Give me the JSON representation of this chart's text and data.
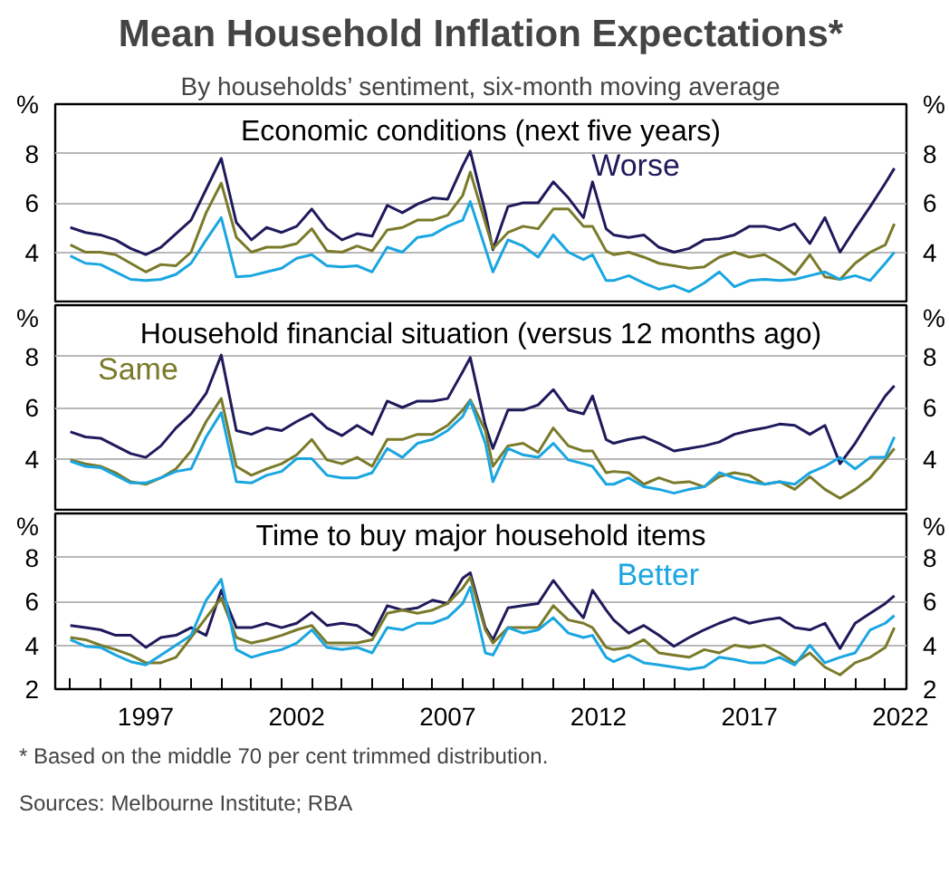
{
  "chart_data": [
    {
      "type": "line",
      "title": "Economic conditions (next five years)",
      "annotations": [
        "Mean Household Inflation Expectations*",
        "By households’ sentiment, six-month moving average"
      ],
      "x": [
        1995,
        1995.5,
        1996,
        1996.5,
        1997,
        1997.5,
        1998,
        1998.5,
        1999,
        1999.5,
        2000,
        2000.5,
        2001,
        2001.5,
        2002,
        2002.5,
        2003,
        2003.5,
        2004,
        2004.5,
        2005,
        2005.5,
        2006,
        2006.5,
        2007,
        2007.5,
        2008,
        2008.25,
        2008.75,
        2009,
        2009.5,
        2010,
        2010.5,
        2011,
        2011.5,
        2012,
        2012.3,
        2012.75,
        2013,
        2013.5,
        2014,
        2014.5,
        2015,
        2015.5,
        2016,
        2016.5,
        2017,
        2017.5,
        2018,
        2018.5,
        2019,
        2019.5,
        2020,
        2020.5,
        2021,
        2021.5,
        2022,
        2022.3
      ],
      "series": [
        {
          "name": "Worse",
          "color": "#1f1a5c",
          "values": [
            5.0,
            4.8,
            4.7,
            4.5,
            4.15,
            3.9,
            4.2,
            4.75,
            5.3,
            6.55,
            7.8,
            5.2,
            4.5,
            5.0,
            4.8,
            5.05,
            5.75,
            4.95,
            4.5,
            4.75,
            4.65,
            5.9,
            5.6,
            5.95,
            6.2,
            6.15,
            7.5,
            8.1,
            5.6,
            4.1,
            5.85,
            6.0,
            6.0,
            6.85,
            6.2,
            5.4,
            6.85,
            4.95,
            4.7,
            4.6,
            4.7,
            4.2,
            4.0,
            4.15,
            4.5,
            4.55,
            4.7,
            5.05,
            5.05,
            4.9,
            5.15,
            4.35,
            5.4,
            4.0,
            4.95,
            5.85,
            6.8,
            7.4
          ]
        },
        {
          "color": "#7a7a2a",
          "values": [
            4.3,
            4.0,
            4.0,
            3.9,
            3.55,
            3.2,
            3.5,
            3.45,
            4.0,
            5.6,
            6.8,
            4.6,
            4.0,
            4.2,
            4.2,
            4.35,
            4.95,
            4.05,
            4.0,
            4.25,
            4.05,
            4.9,
            5.0,
            5.3,
            5.3,
            5.5,
            6.3,
            7.25,
            5.2,
            4.15,
            4.8,
            5.05,
            4.95,
            5.75,
            5.75,
            5.05,
            5.05,
            4.05,
            3.9,
            4.0,
            3.8,
            3.55,
            3.45,
            3.35,
            3.4,
            3.8,
            4.0,
            3.8,
            3.9,
            3.55,
            3.1,
            3.9,
            3.0,
            2.9,
            3.55,
            4.0,
            4.3,
            5.15
          ]
        },
        {
          "color": "#1aa6e0",
          "values": [
            3.85,
            3.55,
            3.5,
            3.2,
            2.9,
            2.85,
            2.9,
            3.1,
            3.55,
            4.5,
            5.4,
            3.0,
            3.05,
            3.2,
            3.35,
            3.75,
            3.9,
            3.45,
            3.4,
            3.45,
            3.2,
            4.2,
            4.0,
            4.6,
            4.7,
            5.05,
            5.3,
            6.05,
            4.15,
            3.2,
            4.5,
            4.25,
            3.8,
            4.7,
            4.0,
            3.7,
            3.9,
            2.85,
            2.85,
            3.05,
            2.75,
            2.5,
            2.65,
            2.4,
            2.75,
            3.2,
            2.6,
            2.85,
            2.9,
            2.85,
            2.9,
            3.05,
            3.2,
            2.9,
            3.05,
            2.85,
            3.55,
            4.0
          ]
        }
      ],
      "xlim": [
        1994.5,
        2022.7
      ],
      "ylim": [
        2,
        10
      ],
      "yticks": [
        4,
        6,
        8
      ],
      "y2lim": [
        2,
        10
      ],
      "y2ticks": [
        4,
        6,
        8
      ],
      "ylabel": "%",
      "y2label": "%",
      "grid": "y",
      "tick_labels": "y"
    },
    {
      "type": "line",
      "title": "Household financial situation (versus 12 months ago)",
      "x": [
        1995,
        1995.5,
        1996,
        1996.5,
        1997,
        1997.5,
        1998,
        1998.5,
        1999,
        1999.5,
        2000,
        2000.5,
        2001,
        2001.5,
        2002,
        2002.5,
        2003,
        2003.5,
        2004,
        2004.5,
        2005,
        2005.5,
        2006,
        2006.5,
        2007,
        2007.5,
        2008,
        2008.25,
        2008.75,
        2009,
        2009.5,
        2010,
        2010.5,
        2011,
        2011.5,
        2012,
        2012.3,
        2012.75,
        2013,
        2013.5,
        2014,
        2014.5,
        2015,
        2015.5,
        2016,
        2016.5,
        2017,
        2017.5,
        2018,
        2018.5,
        2019,
        2019.5,
        2020,
        2020.5,
        2021,
        2021.5,
        2022,
        2022.3
      ],
      "series": [
        {
          "color": "#1f1a5c",
          "values": [
            5.05,
            4.85,
            4.8,
            4.5,
            4.2,
            4.05,
            4.5,
            5.2,
            5.75,
            6.55,
            8.05,
            5.1,
            4.95,
            5.2,
            5.1,
            5.45,
            5.75,
            5.2,
            4.9,
            5.3,
            4.95,
            6.25,
            6.0,
            6.25,
            6.25,
            6.35,
            7.4,
            7.95,
            5.3,
            4.4,
            5.9,
            5.9,
            6.1,
            6.7,
            5.9,
            5.75,
            6.45,
            4.75,
            4.6,
            4.75,
            4.85,
            4.6,
            4.3,
            4.4,
            4.5,
            4.65,
            4.95,
            5.1,
            5.2,
            5.35,
            5.3,
            4.95,
            5.3,
            3.8,
            4.6,
            5.55,
            6.45,
            6.85
          ]
        },
        {
          "name": "Same",
          "color": "#7a7a2a",
          "values": [
            3.95,
            3.8,
            3.7,
            3.45,
            3.1,
            3.0,
            3.25,
            3.6,
            4.3,
            5.45,
            6.35,
            3.7,
            3.35,
            3.6,
            3.8,
            4.15,
            4.75,
            3.95,
            3.8,
            4.05,
            3.7,
            4.75,
            4.75,
            4.95,
            4.95,
            5.3,
            5.9,
            6.3,
            5.1,
            3.7,
            4.5,
            4.6,
            4.25,
            5.2,
            4.5,
            4.3,
            4.3,
            3.45,
            3.5,
            3.45,
            3.0,
            3.25,
            3.05,
            3.1,
            2.9,
            3.3,
            3.45,
            3.35,
            3.0,
            3.1,
            2.8,
            3.3,
            2.8,
            2.45,
            2.8,
            3.25,
            3.95,
            4.4
          ]
        },
        {
          "color": "#1aa6e0",
          "values": [
            3.9,
            3.7,
            3.65,
            3.35,
            3.05,
            3.05,
            3.25,
            3.5,
            3.6,
            4.85,
            5.8,
            3.1,
            3.05,
            3.35,
            3.5,
            4.0,
            4.0,
            3.35,
            3.25,
            3.25,
            3.45,
            4.4,
            4.05,
            4.6,
            4.75,
            5.1,
            5.65,
            6.25,
            4.6,
            3.1,
            4.4,
            4.15,
            4.05,
            4.6,
            3.95,
            3.8,
            3.7,
            3.0,
            3.0,
            3.25,
            2.9,
            2.8,
            2.65,
            2.8,
            2.9,
            3.45,
            3.25,
            3.1,
            3.0,
            3.1,
            3.0,
            3.45,
            3.7,
            4.05,
            3.6,
            4.05,
            4.05,
            4.85
          ]
        }
      ],
      "xlim": [
        1994.5,
        2022.7
      ],
      "ylim": [
        2,
        10
      ],
      "yticks": [
        4,
        6,
        8
      ],
      "y2lim": [
        2,
        10
      ],
      "y2ticks": [
        4,
        6,
        8
      ],
      "ylabel": "%",
      "y2label": "%",
      "grid": "y",
      "tick_labels": "y"
    },
    {
      "type": "line",
      "title": "Time to buy major household items",
      "annotations": [
        "*    Based on the middle 70 per cent trimmed distribution.",
        "Sources: Melbourne Institute; RBA"
      ],
      "x": [
        1995,
        1995.5,
        1996,
        1996.5,
        1997,
        1997.5,
        1998,
        1998.5,
        1999,
        1999.5,
        2000,
        2000.5,
        2001,
        2001.5,
        2002,
        2002.5,
        2003,
        2003.5,
        2004,
        2004.5,
        2005,
        2005.5,
        2006,
        2006.5,
        2007,
        2007.5,
        2008,
        2008.25,
        2008.75,
        2009,
        2009.5,
        2010,
        2010.5,
        2011,
        2011.5,
        2012,
        2012.3,
        2012.75,
        2013,
        2013.5,
        2014,
        2014.5,
        2015,
        2015.5,
        2016,
        2016.5,
        2017,
        2017.5,
        2018,
        2018.5,
        2019,
        2019.5,
        2020,
        2020.5,
        2021,
        2021.5,
        2022,
        2022.3
      ],
      "series": [
        {
          "color": "#1f1a5c",
          "values": [
            4.9,
            4.8,
            4.7,
            4.45,
            4.45,
            3.9,
            4.35,
            4.45,
            4.8,
            4.45,
            6.5,
            4.8,
            4.8,
            5.0,
            4.8,
            5.0,
            5.5,
            4.9,
            5.0,
            4.9,
            4.45,
            5.8,
            5.6,
            5.7,
            6.05,
            5.9,
            7.05,
            7.3,
            4.8,
            4.25,
            5.7,
            5.8,
            5.9,
            6.95,
            6.05,
            5.25,
            6.5,
            5.6,
            5.15,
            4.55,
            4.9,
            4.45,
            3.95,
            4.35,
            4.7,
            5.0,
            5.25,
            5.0,
            5.15,
            5.25,
            4.8,
            4.7,
            5.0,
            3.85,
            5.0,
            5.45,
            5.9,
            6.25
          ]
        },
        {
          "color": "#7a7a2a",
          "values": [
            4.35,
            4.25,
            4.0,
            3.8,
            3.55,
            3.2,
            3.2,
            3.45,
            4.35,
            5.25,
            6.15,
            4.35,
            4.1,
            4.25,
            4.45,
            4.7,
            4.9,
            4.1,
            4.1,
            4.1,
            4.25,
            5.45,
            5.6,
            5.45,
            5.6,
            5.9,
            6.6,
            7.1,
            4.7,
            4.1,
            4.8,
            4.8,
            4.8,
            5.8,
            5.15,
            5.0,
            4.8,
            3.9,
            3.8,
            3.9,
            4.25,
            3.65,
            3.55,
            3.45,
            3.8,
            3.65,
            4.0,
            3.9,
            4.0,
            3.65,
            3.2,
            3.65,
            3.0,
            2.65,
            3.2,
            3.45,
            3.9,
            4.8
          ]
        },
        {
          "name": "Better",
          "color": "#1aa6e0",
          "values": [
            4.25,
            3.95,
            3.9,
            3.55,
            3.25,
            3.1,
            3.55,
            4.0,
            4.45,
            6.05,
            7.0,
            3.8,
            3.45,
            3.65,
            3.8,
            4.1,
            4.7,
            3.9,
            3.8,
            3.9,
            3.65,
            4.8,
            4.7,
            5.0,
            5.0,
            5.25,
            5.9,
            6.65,
            3.65,
            3.55,
            4.8,
            4.55,
            4.7,
            5.25,
            4.55,
            4.35,
            4.45,
            3.45,
            3.25,
            3.55,
            3.2,
            3.1,
            3.0,
            2.9,
            3.0,
            3.45,
            3.35,
            3.2,
            3.2,
            3.45,
            3.1,
            4.0,
            3.2,
            3.45,
            3.65,
            4.7,
            5.0,
            5.35
          ]
        }
      ],
      "xlim": [
        1994.5,
        2022.7
      ],
      "xticks": [
        {
          "value": 1995,
          "label": null
        },
        {
          "value": 1996,
          "label": null
        },
        {
          "value": 1997,
          "label": null
        },
        {
          "value": 1997.5,
          "label": "1997"
        },
        {
          "value": 1998,
          "label": null
        },
        {
          "value": 1999,
          "label": null
        },
        {
          "value": 2000,
          "label": null
        },
        {
          "value": 2001,
          "label": null
        },
        {
          "value": 2002,
          "label": null
        },
        {
          "value": 2002.5,
          "label": "2002"
        },
        {
          "value": 2003,
          "label": null
        },
        {
          "value": 2004,
          "label": null
        },
        {
          "value": 2005,
          "label": null
        },
        {
          "value": 2006,
          "label": null
        },
        {
          "value": 2007,
          "label": null
        },
        {
          "value": 2007.5,
          "label": "2007"
        },
        {
          "value": 2008,
          "label": null
        },
        {
          "value": 2009,
          "label": null
        },
        {
          "value": 2010,
          "label": null
        },
        {
          "value": 2011,
          "label": null
        },
        {
          "value": 2012,
          "label": null
        },
        {
          "value": 2012.5,
          "label": "2012"
        },
        {
          "value": 2013,
          "label": null
        },
        {
          "value": 2014,
          "label": null
        },
        {
          "value": 2015,
          "label": null
        },
        {
          "value": 2016,
          "label": null
        },
        {
          "value": 2017,
          "label": null
        },
        {
          "value": 2017.5,
          "label": "2017"
        },
        {
          "value": 2018,
          "label": null
        },
        {
          "value": 2019,
          "label": null
        },
        {
          "value": 2020,
          "label": null
        },
        {
          "value": 2021,
          "label": null
        },
        {
          "value": 2022,
          "label": null
        },
        {
          "value": 2022.5,
          "label": "2022"
        }
      ],
      "ylim": [
        2,
        10
      ],
      "yticks": [
        2,
        4,
        6,
        8
      ],
      "y2lim": [
        2,
        10
      ],
      "y2ticks": [
        2,
        4,
        6,
        8
      ],
      "ylabel": "%",
      "y2label": "%",
      "grid": "y"
    }
  ]
}
